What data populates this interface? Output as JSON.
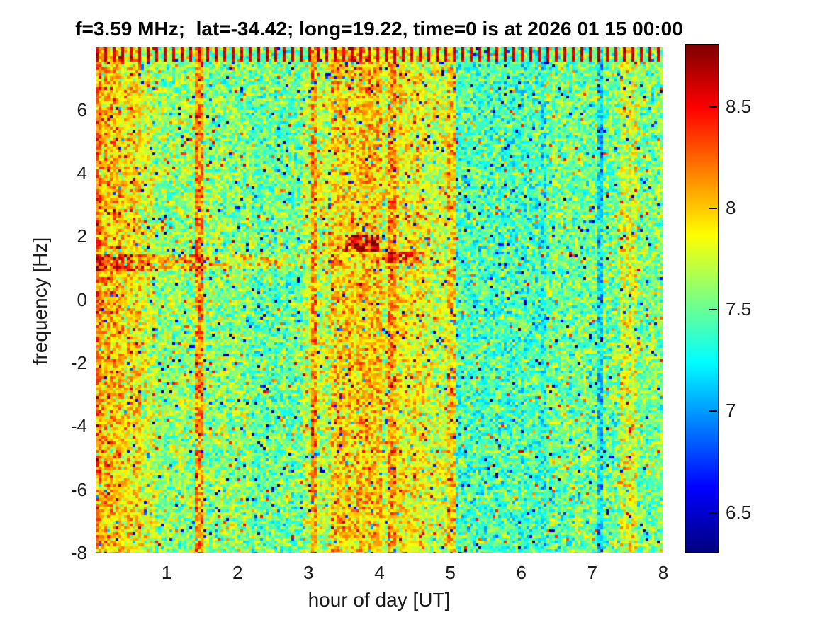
{
  "figure": {
    "background": "#ffffff"
  },
  "chart_data": {
    "type": "heatmap",
    "title": "f=3.59 MHz;  lat=-34.42; long=19.22, time=0 is at 2026 01 15 00:00",
    "xlabel": "hour of day [UT]",
    "ylabel": "frequency [Hz]",
    "xlim": [
      0,
      8
    ],
    "ylim": [
      -8,
      7.96
    ],
    "xticks": [
      "1",
      "2",
      "3",
      "4",
      "5",
      "6",
      "7",
      "8"
    ],
    "xtick_values": [
      1,
      2,
      3,
      4,
      5,
      6,
      7,
      8
    ],
    "yticks": [
      "-8",
      "-6",
      "-4",
      "-2",
      "0",
      "2",
      "4",
      "6"
    ],
    "ytick_values": [
      -8,
      -6,
      -4,
      -2,
      0,
      2,
      4,
      6
    ],
    "grid": false,
    "colormap": "jet",
    "clim": [
      6.31,
      8.81
    ],
    "colorbar": {
      "position": "right",
      "tick_labels": [
        "6.5",
        "7",
        "7.5",
        "8",
        "8.5"
      ],
      "tick_values": [
        6.5,
        7,
        7.5,
        8,
        8.5
      ]
    },
    "description": "Noisy spectrogram of geomagnetic/ionosonde doppler spectra vs time; speckled jet-colored noise with vertical intensity bands, a horizontal enhanced streak near +1.2 Hz during hours 0-4.5, a dark-red blotch near hour 3.7 at +1.8 Hz, regularly spaced dark-red dashes along the top edge, a narrow blue quiet line near hour 7.1, and quieter cyan background between hours 5 and 6.3",
    "noise": {
      "spread": 0.5,
      "speck_probability": 0.05,
      "speck_low": -1.1,
      "speck_high": 0.65,
      "base_level": 7.55
    },
    "column_bands": [
      {
        "x0": 0.0,
        "x1": 0.07,
        "mean": 8.2
      },
      {
        "x0": 0.07,
        "x1": 0.35,
        "mean": 8.0
      },
      {
        "x0": 0.35,
        "x1": 0.62,
        "mean": 7.92
      },
      {
        "x0": 0.62,
        "x1": 0.85,
        "mean": 7.75
      },
      {
        "x0": 0.85,
        "x1": 1.4,
        "mean": 7.6
      },
      {
        "x0": 1.4,
        "x1": 1.5,
        "mean": 8.15
      },
      {
        "x0": 1.5,
        "x1": 2.2,
        "mean": 7.58
      },
      {
        "x0": 2.2,
        "x1": 2.9,
        "mean": 7.5
      },
      {
        "x0": 2.9,
        "x1": 3.02,
        "mean": 7.7
      },
      {
        "x0": 3.02,
        "x1": 3.12,
        "mean": 8.1
      },
      {
        "x0": 3.12,
        "x1": 3.32,
        "mean": 7.72
      },
      {
        "x0": 3.32,
        "x1": 3.72,
        "mean": 7.95
      },
      {
        "x0": 3.72,
        "x1": 4.02,
        "mean": 8.0
      },
      {
        "x0": 4.02,
        "x1": 4.12,
        "mean": 7.75
      },
      {
        "x0": 4.12,
        "x1": 4.24,
        "mean": 8.1
      },
      {
        "x0": 4.24,
        "x1": 4.62,
        "mean": 7.85
      },
      {
        "x0": 4.62,
        "x1": 4.96,
        "mean": 7.75
      },
      {
        "x0": 4.96,
        "x1": 5.08,
        "mean": 7.95
      },
      {
        "x0": 5.08,
        "x1": 6.28,
        "mean": 7.42
      },
      {
        "x0": 6.28,
        "x1": 6.34,
        "mean": 7.3
      },
      {
        "x0": 6.34,
        "x1": 7.06,
        "mean": 7.52
      },
      {
        "x0": 7.06,
        "x1": 7.16,
        "mean": 7.15
      },
      {
        "x0": 7.16,
        "x1": 7.38,
        "mean": 7.52
      },
      {
        "x0": 7.38,
        "x1": 7.64,
        "mean": 7.78
      },
      {
        "x0": 7.64,
        "x1": 8.01,
        "mean": 7.56
      }
    ],
    "features": [
      {
        "name": "doppler-streak-strong",
        "x0": 0.0,
        "x1": 1.6,
        "y0": 0.9,
        "y1": 1.45,
        "boost": 0.5
      },
      {
        "name": "doppler-streak-mid",
        "x0": 1.6,
        "x1": 2.7,
        "y0": 1.0,
        "y1": 1.4,
        "boost": 0.35
      },
      {
        "name": "doppler-streak-faint",
        "x0": 2.7,
        "x1": 3.5,
        "y0": 1.05,
        "y1": 1.3,
        "boost": 0.18
      },
      {
        "name": "red-blotch",
        "x0": 3.5,
        "x1": 3.98,
        "y0": 1.5,
        "y1": 2.05,
        "boost": 0.75
      },
      {
        "name": "red-dash",
        "x0": 4.05,
        "x1": 4.65,
        "y0": 1.15,
        "y1": 1.55,
        "boost": 0.6
      }
    ],
    "top_edge_markers": {
      "period_hours": 0.12,
      "width_hours": 0.045,
      "depth_hz": 0.45,
      "level": 8.62
    }
  }
}
